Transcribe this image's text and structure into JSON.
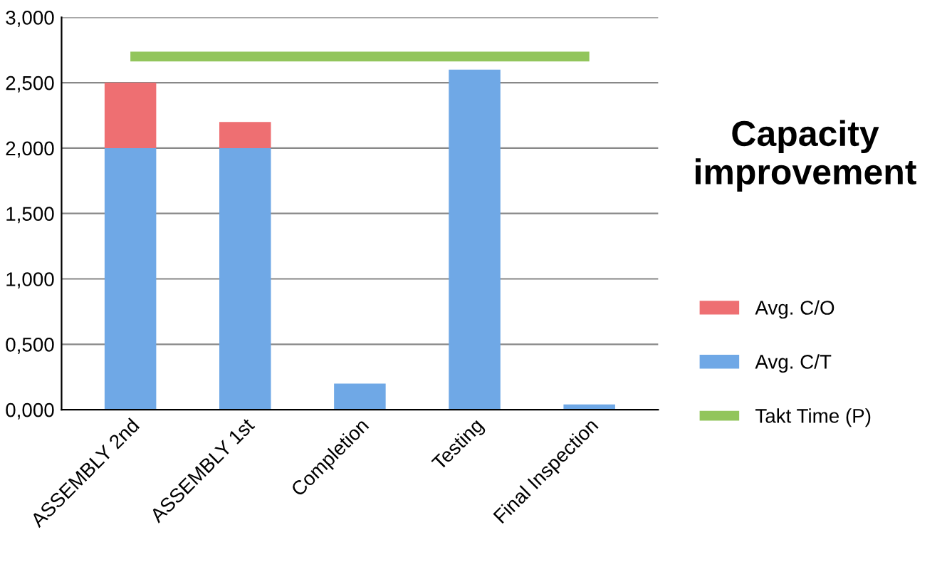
{
  "chart_data": {
    "type": "bar",
    "title": "Capacity improvement",
    "categories": [
      "ASSEMBLY 2nd",
      "ASSEMBLY 1st",
      "Completion",
      "Testing",
      "Final Inspection"
    ],
    "stacked": true,
    "series": [
      {
        "name": "Avg. C/T",
        "color": "#6fa8e6",
        "values": [
          2.0,
          2.0,
          0.2,
          2.6,
          0.04
        ]
      },
      {
        "name": "Avg. C/O",
        "color": "#ee6f72",
        "values": [
          0.5,
          0.2,
          null,
          null,
          null
        ]
      },
      {
        "name": "Takt Time (P)",
        "type": "line",
        "color": "#92c55c",
        "values": [
          2.7,
          2.7,
          2.7,
          2.7,
          2.7
        ]
      }
    ],
    "ylim": [
      0,
      3
    ],
    "yticks": [
      {
        "value": 0,
        "label": "0,000"
      },
      {
        "value": 0.5,
        "label": "0,500"
      },
      {
        "value": 1,
        "label": "1,000"
      },
      {
        "value": 1.5,
        "label": "1,500"
      },
      {
        "value": 2,
        "label": "2,000"
      },
      {
        "value": 2.5,
        "label": "2,500"
      },
      {
        "value": 3,
        "label": "3,000"
      }
    ],
    "grid": "y",
    "legend": "right"
  }
}
